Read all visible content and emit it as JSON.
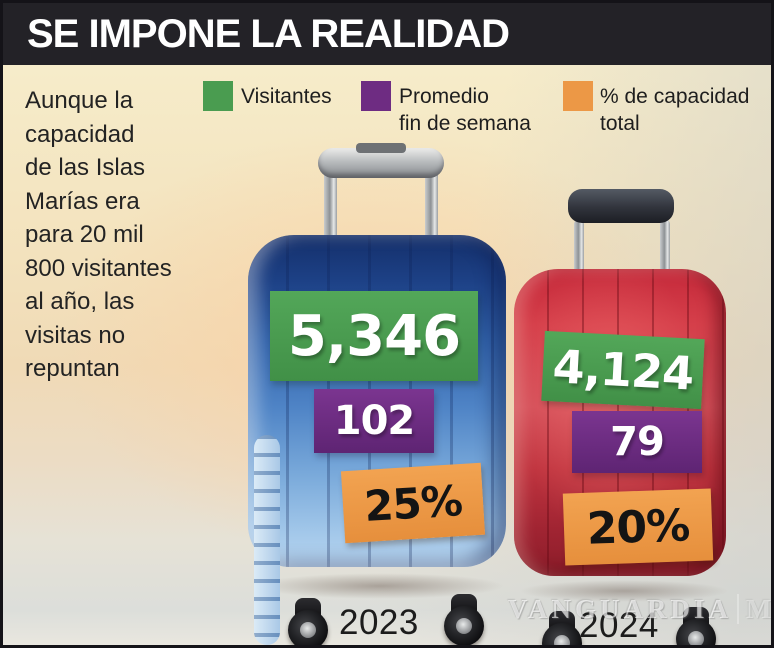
{
  "title": "SE IMPONE LA REALIDAD",
  "intro": "Aunque la\ncapacidad\nde las Islas\nMarías era\npara 20 mil\n800 visitantes\nal año, las\nvisitas no\nrepuntan",
  "legend": {
    "visitors": {
      "label": "Visitantes",
      "color": "#4a9c50"
    },
    "weekend": {
      "label": "Promedio\nfin de semana",
      "color": "#6e2c82"
    },
    "capacity": {
      "label": "% de capacidad\ntotal",
      "color": "#ec9846"
    }
  },
  "suitcases": {
    "y2023": {
      "year": "2023",
      "visitors": "5,346",
      "weekend_avg": "102",
      "capacity": "25%",
      "case_color": "blue"
    },
    "y2024": {
      "year": "2024",
      "visitors": "4,124",
      "weekend_avg": "79",
      "capacity": "20%",
      "case_color": "red"
    }
  },
  "watermark": {
    "main": "VANGUARDIA",
    "suffix": "MX"
  },
  "chart_data": {
    "type": "bar",
    "title": "SE IMPONE LA REALIDAD",
    "note": "Aunque la capacidad de las Islas Marías era para 20 mil 800 visitantes al año, las visitas no repuntan",
    "categories": [
      "2023",
      "2024"
    ],
    "series": [
      {
        "name": "Visitantes",
        "values": [
          5346,
          4124
        ],
        "color": "#4a9c50"
      },
      {
        "name": "Promedio fin de semana",
        "values": [
          102,
          79
        ],
        "color": "#6e2c82"
      },
      {
        "name": "% de capacidad total",
        "values": [
          25,
          20
        ],
        "unit": "%",
        "color": "#ec9846"
      }
    ],
    "legend_position": "top",
    "style": "pictorial (suitcases sized by visitors)"
  }
}
